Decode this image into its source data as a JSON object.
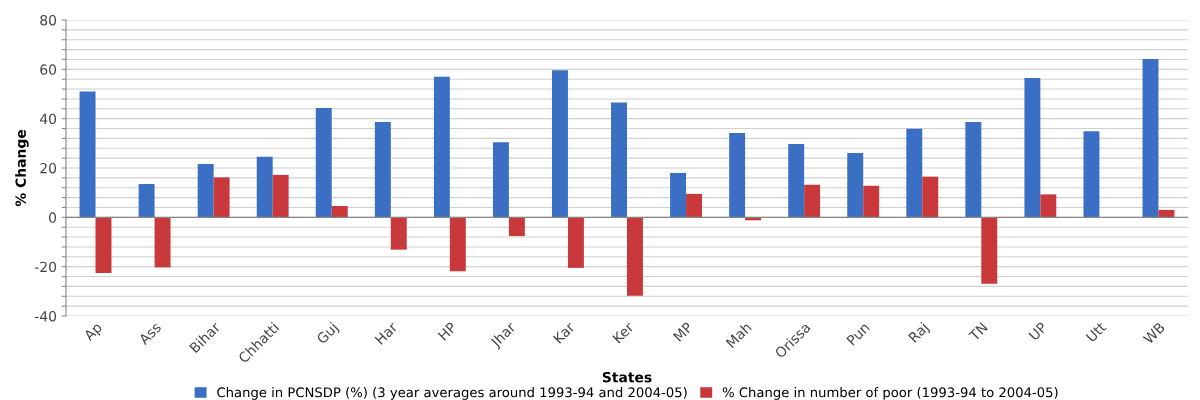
{
  "chart_data": {
    "type": "bar",
    "xlabel": "States",
    "ylabel": "% Change",
    "categories": [
      "Ap",
      "Ass",
      "Bihar",
      "Chhatti",
      "Guj",
      "Har",
      "HP",
      "Jhar",
      "Kar",
      "Ker",
      "MP",
      "Mah",
      "Orissa",
      "Pun",
      "Raj",
      "TN",
      "UP",
      "Utt",
      "WB"
    ],
    "series": [
      {
        "name": "Change in PCNSDP (%) (3 year averages around 1993-94 and 2004-05)",
        "color": "#3a6fc4",
        "values": [
          51,
          13.5,
          21.6,
          24.6,
          44.3,
          38.6,
          57,
          30.4,
          59.6,
          46.6,
          18,
          34.2,
          29.7,
          26.1,
          35.9,
          38.6,
          56.5,
          34.9,
          64.2
        ]
      },
      {
        "name": "% Change in number of poor (1993-94 to 2004-05)",
        "color": "#c9383a",
        "values": [
          -22.6,
          -20.3,
          16.2,
          17.2,
          4.6,
          -13.1,
          -21.9,
          -7.6,
          -20.5,
          -31.8,
          9.5,
          -1.2,
          13.2,
          12.8,
          16.5,
          -26.9,
          9.3,
          null,
          3
        ]
      }
    ],
    "ylim": [
      -40,
      80
    ],
    "yticks": [
      -40,
      {
        "value": -36,
        "label": null
      },
      {
        "value": -32,
        "label": null
      },
      {
        "value": -28,
        "label": null
      },
      {
        "value": -24,
        "label": null
      },
      -20,
      {
        "value": -16,
        "label": null
      },
      {
        "value": -12,
        "label": null
      },
      {
        "value": -8,
        "label": null
      },
      {
        "value": -4,
        "label": null
      },
      0,
      {
        "value": 4,
        "label": null
      },
      {
        "value": 8,
        "label": null
      },
      {
        "value": 12,
        "label": null
      },
      {
        "value": 16,
        "label": null
      },
      20,
      {
        "value": 24,
        "label": null
      },
      {
        "value": 28,
        "label": null
      },
      {
        "value": 32,
        "label": null
      },
      {
        "value": 36,
        "label": null
      },
      40,
      {
        "value": 44,
        "label": null
      },
      {
        "value": 48,
        "label": null
      },
      {
        "value": 52,
        "label": null
      },
      {
        "value": 56,
        "label": null
      },
      60,
      {
        "value": 64,
        "label": null
      },
      {
        "value": 68,
        "label": null
      },
      {
        "value": 72,
        "label": null
      },
      {
        "value": 76,
        "label": null
      },
      80
    ],
    "grid": "y",
    "legend": "bottom"
  }
}
